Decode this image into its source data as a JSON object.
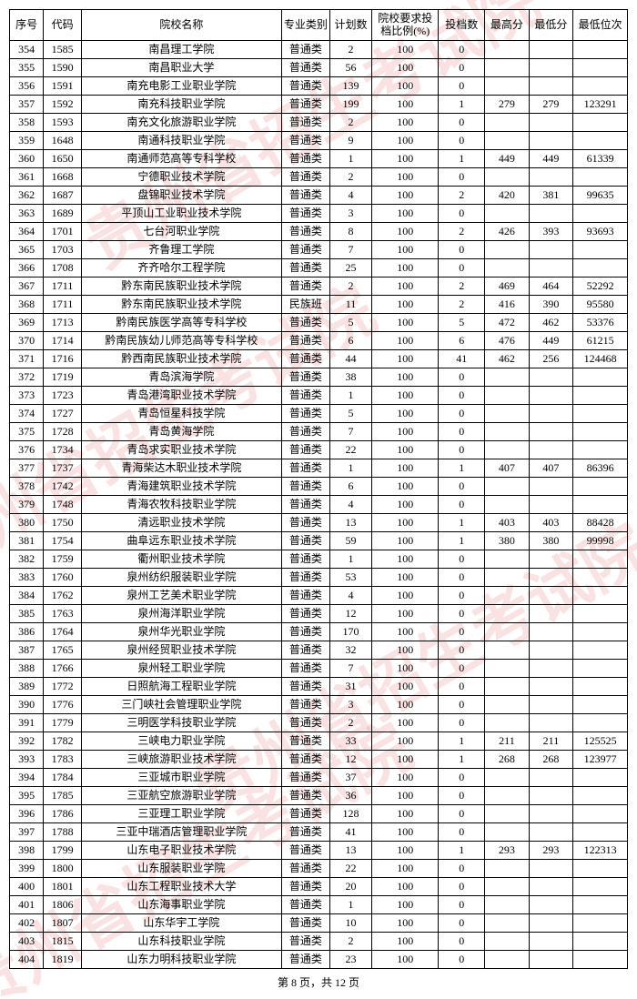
{
  "watermark_text": "贵州省招生考试院",
  "headers": [
    "序号",
    "代码",
    "院校名称",
    "专业类别",
    "计划数",
    "院校要求投档比例(%)",
    "投档数",
    "最高分",
    "最低分",
    "最低位次"
  ],
  "footer": "第 8 页，共 12 页",
  "rows": [
    {
      "seq": "354",
      "code": "1585",
      "name": "南昌理工学院",
      "type": "普通类",
      "plan": "2",
      "ratio": "100",
      "count": "0",
      "max": "",
      "min": "",
      "rank": ""
    },
    {
      "seq": "355",
      "code": "1590",
      "name": "南昌职业大学",
      "type": "普通类",
      "plan": "56",
      "ratio": "100",
      "count": "0",
      "max": "",
      "min": "",
      "rank": ""
    },
    {
      "seq": "356",
      "code": "1591",
      "name": "南充电影工业职业学院",
      "type": "普通类",
      "plan": "139",
      "ratio": "100",
      "count": "0",
      "max": "",
      "min": "",
      "rank": ""
    },
    {
      "seq": "357",
      "code": "1592",
      "name": "南充科技职业学院",
      "type": "普通类",
      "plan": "199",
      "ratio": "100",
      "count": "1",
      "max": "279",
      "min": "279",
      "rank": "123291"
    },
    {
      "seq": "358",
      "code": "1593",
      "name": "南充文化旅游职业学院",
      "type": "普通类",
      "plan": "2",
      "ratio": "100",
      "count": "0",
      "max": "",
      "min": "",
      "rank": ""
    },
    {
      "seq": "359",
      "code": "1648",
      "name": "南通科技职业学院",
      "type": "普通类",
      "plan": "9",
      "ratio": "100",
      "count": "0",
      "max": "",
      "min": "",
      "rank": ""
    },
    {
      "seq": "360",
      "code": "1650",
      "name": "南通师范高等专科学校",
      "type": "普通类",
      "plan": "1",
      "ratio": "100",
      "count": "1",
      "max": "449",
      "min": "449",
      "rank": "61339"
    },
    {
      "seq": "361",
      "code": "1668",
      "name": "宁德职业技术学院",
      "type": "普通类",
      "plan": "2",
      "ratio": "100",
      "count": "0",
      "max": "",
      "min": "",
      "rank": ""
    },
    {
      "seq": "362",
      "code": "1687",
      "name": "盘锦职业技术学院",
      "type": "普通类",
      "plan": "4",
      "ratio": "100",
      "count": "2",
      "max": "420",
      "min": "381",
      "rank": "99635"
    },
    {
      "seq": "363",
      "code": "1689",
      "name": "平顶山工业职业技术学院",
      "type": "普通类",
      "plan": "3",
      "ratio": "100",
      "count": "0",
      "max": "",
      "min": "",
      "rank": ""
    },
    {
      "seq": "364",
      "code": "1701",
      "name": "七台河职业学院",
      "type": "普通类",
      "plan": "8",
      "ratio": "100",
      "count": "2",
      "max": "426",
      "min": "393",
      "rank": "93693"
    },
    {
      "seq": "365",
      "code": "1703",
      "name": "齐鲁理工学院",
      "type": "普通类",
      "plan": "7",
      "ratio": "100",
      "count": "0",
      "max": "",
      "min": "",
      "rank": ""
    },
    {
      "seq": "366",
      "code": "1708",
      "name": "齐齐哈尔工程学院",
      "type": "普通类",
      "plan": "25",
      "ratio": "100",
      "count": "0",
      "max": "",
      "min": "",
      "rank": ""
    },
    {
      "seq": "367",
      "code": "1711",
      "name": "黔东南民族职业技术学院",
      "type": "普通类",
      "plan": "2",
      "ratio": "100",
      "count": "2",
      "max": "469",
      "min": "464",
      "rank": "52292"
    },
    {
      "seq": "368",
      "code": "1711",
      "name": "黔东南民族职业技术学院",
      "type": "民族班",
      "plan": "11",
      "ratio": "100",
      "count": "2",
      "max": "416",
      "min": "390",
      "rank": "95580"
    },
    {
      "seq": "369",
      "code": "1713",
      "name": "黔南民族医学高等专科学校",
      "type": "普通类",
      "plan": "5",
      "ratio": "100",
      "count": "5",
      "max": "472",
      "min": "462",
      "rank": "53376"
    },
    {
      "seq": "370",
      "code": "1714",
      "name": "黔南民族幼儿师范高等专科学校",
      "type": "普通类",
      "plan": "6",
      "ratio": "100",
      "count": "6",
      "max": "476",
      "min": "449",
      "rank": "61215"
    },
    {
      "seq": "371",
      "code": "1716",
      "name": "黔西南民族职业技术学院",
      "type": "普通类",
      "plan": "44",
      "ratio": "100",
      "count": "41",
      "max": "462",
      "min": "256",
      "rank": "124468"
    },
    {
      "seq": "372",
      "code": "1719",
      "name": "青岛滨海学院",
      "type": "普通类",
      "plan": "38",
      "ratio": "100",
      "count": "0",
      "max": "",
      "min": "",
      "rank": ""
    },
    {
      "seq": "373",
      "code": "1723",
      "name": "青岛港湾职业技术学院",
      "type": "普通类",
      "plan": "1",
      "ratio": "100",
      "count": "0",
      "max": "",
      "min": "",
      "rank": ""
    },
    {
      "seq": "374",
      "code": "1727",
      "name": "青岛恒星科技学院",
      "type": "普通类",
      "plan": "5",
      "ratio": "100",
      "count": "0",
      "max": "",
      "min": "",
      "rank": ""
    },
    {
      "seq": "375",
      "code": "1728",
      "name": "青岛黄海学院",
      "type": "普通类",
      "plan": "7",
      "ratio": "100",
      "count": "0",
      "max": "",
      "min": "",
      "rank": ""
    },
    {
      "seq": "376",
      "code": "1734",
      "name": "青岛求实职业技术学院",
      "type": "普通类",
      "plan": "22",
      "ratio": "100",
      "count": "0",
      "max": "",
      "min": "",
      "rank": ""
    },
    {
      "seq": "377",
      "code": "1737",
      "name": "青海柴达木职业技术学院",
      "type": "普通类",
      "plan": "1",
      "ratio": "100",
      "count": "1",
      "max": "407",
      "min": "407",
      "rank": "86396"
    },
    {
      "seq": "378",
      "code": "1742",
      "name": "青海建筑职业技术学院",
      "type": "普通类",
      "plan": "6",
      "ratio": "100",
      "count": "0",
      "max": "",
      "min": "",
      "rank": ""
    },
    {
      "seq": "379",
      "code": "1748",
      "name": "青海农牧科技职业学院",
      "type": "普通类",
      "plan": "4",
      "ratio": "100",
      "count": "0",
      "max": "",
      "min": "",
      "rank": ""
    },
    {
      "seq": "380",
      "code": "1750",
      "name": "清远职业技术学院",
      "type": "普通类",
      "plan": "13",
      "ratio": "100",
      "count": "1",
      "max": "403",
      "min": "403",
      "rank": "88428"
    },
    {
      "seq": "381",
      "code": "1754",
      "name": "曲阜远东职业技术学院",
      "type": "普通类",
      "plan": "59",
      "ratio": "100",
      "count": "1",
      "max": "380",
      "min": "380",
      "rank": "99998"
    },
    {
      "seq": "382",
      "code": "1759",
      "name": "衢州职业技术学院",
      "type": "普通类",
      "plan": "1",
      "ratio": "100",
      "count": "0",
      "max": "",
      "min": "",
      "rank": ""
    },
    {
      "seq": "383",
      "code": "1760",
      "name": "泉州纺织服装职业学院",
      "type": "普通类",
      "plan": "53",
      "ratio": "100",
      "count": "0",
      "max": "",
      "min": "",
      "rank": ""
    },
    {
      "seq": "384",
      "code": "1762",
      "name": "泉州工艺美术职业学院",
      "type": "普通类",
      "plan": "4",
      "ratio": "100",
      "count": "0",
      "max": "",
      "min": "",
      "rank": ""
    },
    {
      "seq": "385",
      "code": "1763",
      "name": "泉州海洋职业学院",
      "type": "普通类",
      "plan": "12",
      "ratio": "100",
      "count": "0",
      "max": "",
      "min": "",
      "rank": ""
    },
    {
      "seq": "386",
      "code": "1764",
      "name": "泉州华光职业学院",
      "type": "普通类",
      "plan": "170",
      "ratio": "100",
      "count": "0",
      "max": "",
      "min": "",
      "rank": ""
    },
    {
      "seq": "387",
      "code": "1765",
      "name": "泉州经贸职业技术学院",
      "type": "普通类",
      "plan": "32",
      "ratio": "100",
      "count": "0",
      "max": "",
      "min": "",
      "rank": ""
    },
    {
      "seq": "388",
      "code": "1766",
      "name": "泉州轻工职业学院",
      "type": "普通类",
      "plan": "7",
      "ratio": "100",
      "count": "0",
      "max": "",
      "min": "",
      "rank": ""
    },
    {
      "seq": "389",
      "code": "1772",
      "name": "日照航海工程职业学院",
      "type": "普通类",
      "plan": "31",
      "ratio": "100",
      "count": "0",
      "max": "",
      "min": "",
      "rank": ""
    },
    {
      "seq": "390",
      "code": "1776",
      "name": "三门峡社会管理职业学院",
      "type": "普通类",
      "plan": "3",
      "ratio": "100",
      "count": "0",
      "max": "",
      "min": "",
      "rank": ""
    },
    {
      "seq": "391",
      "code": "1779",
      "name": "三明医学科技职业学院",
      "type": "普通类",
      "plan": "2",
      "ratio": "100",
      "count": "0",
      "max": "",
      "min": "",
      "rank": ""
    },
    {
      "seq": "392",
      "code": "1782",
      "name": "三峡电力职业学院",
      "type": "普通类",
      "plan": "33",
      "ratio": "100",
      "count": "1",
      "max": "211",
      "min": "211",
      "rank": "125525"
    },
    {
      "seq": "393",
      "code": "1783",
      "name": "三峡旅游职业技术学院",
      "type": "普通类",
      "plan": "12",
      "ratio": "100",
      "count": "1",
      "max": "268",
      "min": "268",
      "rank": "123977"
    },
    {
      "seq": "394",
      "code": "1784",
      "name": "三亚城市职业学院",
      "type": "普通类",
      "plan": "37",
      "ratio": "100",
      "count": "0",
      "max": "",
      "min": "",
      "rank": ""
    },
    {
      "seq": "395",
      "code": "1785",
      "name": "三亚航空旅游职业学院",
      "type": "普通类",
      "plan": "36",
      "ratio": "100",
      "count": "0",
      "max": "",
      "min": "",
      "rank": ""
    },
    {
      "seq": "396",
      "code": "1786",
      "name": "三亚理工职业学院",
      "type": "普通类",
      "plan": "128",
      "ratio": "100",
      "count": "0",
      "max": "",
      "min": "",
      "rank": ""
    },
    {
      "seq": "397",
      "code": "1788",
      "name": "三亚中瑞酒店管理职业学院",
      "type": "普通类",
      "plan": "41",
      "ratio": "100",
      "count": "0",
      "max": "",
      "min": "",
      "rank": ""
    },
    {
      "seq": "398",
      "code": "1799",
      "name": "山东电子职业技术学院",
      "type": "普通类",
      "plan": "13",
      "ratio": "100",
      "count": "1",
      "max": "293",
      "min": "293",
      "rank": "122313"
    },
    {
      "seq": "399",
      "code": "1800",
      "name": "山东服装职业学院",
      "type": "普通类",
      "plan": "22",
      "ratio": "100",
      "count": "0",
      "max": "",
      "min": "",
      "rank": ""
    },
    {
      "seq": "400",
      "code": "1801",
      "name": "山东工程职业技术大学",
      "type": "普通类",
      "plan": "20",
      "ratio": "100",
      "count": "0",
      "max": "",
      "min": "",
      "rank": ""
    },
    {
      "seq": "401",
      "code": "1806",
      "name": "山东海事职业学院",
      "type": "普通类",
      "plan": "1",
      "ratio": "100",
      "count": "0",
      "max": "",
      "min": "",
      "rank": ""
    },
    {
      "seq": "402",
      "code": "1807",
      "name": "山东华宇工学院",
      "type": "普通类",
      "plan": "10",
      "ratio": "100",
      "count": "0",
      "max": "",
      "min": "",
      "rank": ""
    },
    {
      "seq": "403",
      "code": "1815",
      "name": "山东科技职业学院",
      "type": "普通类",
      "plan": "2",
      "ratio": "100",
      "count": "0",
      "max": "",
      "min": "",
      "rank": ""
    },
    {
      "seq": "404",
      "code": "1819",
      "name": "山东力明科技职业学院",
      "type": "普通类",
      "plan": "23",
      "ratio": "100",
      "count": "0",
      "max": "",
      "min": "",
      "rank": ""
    }
  ]
}
